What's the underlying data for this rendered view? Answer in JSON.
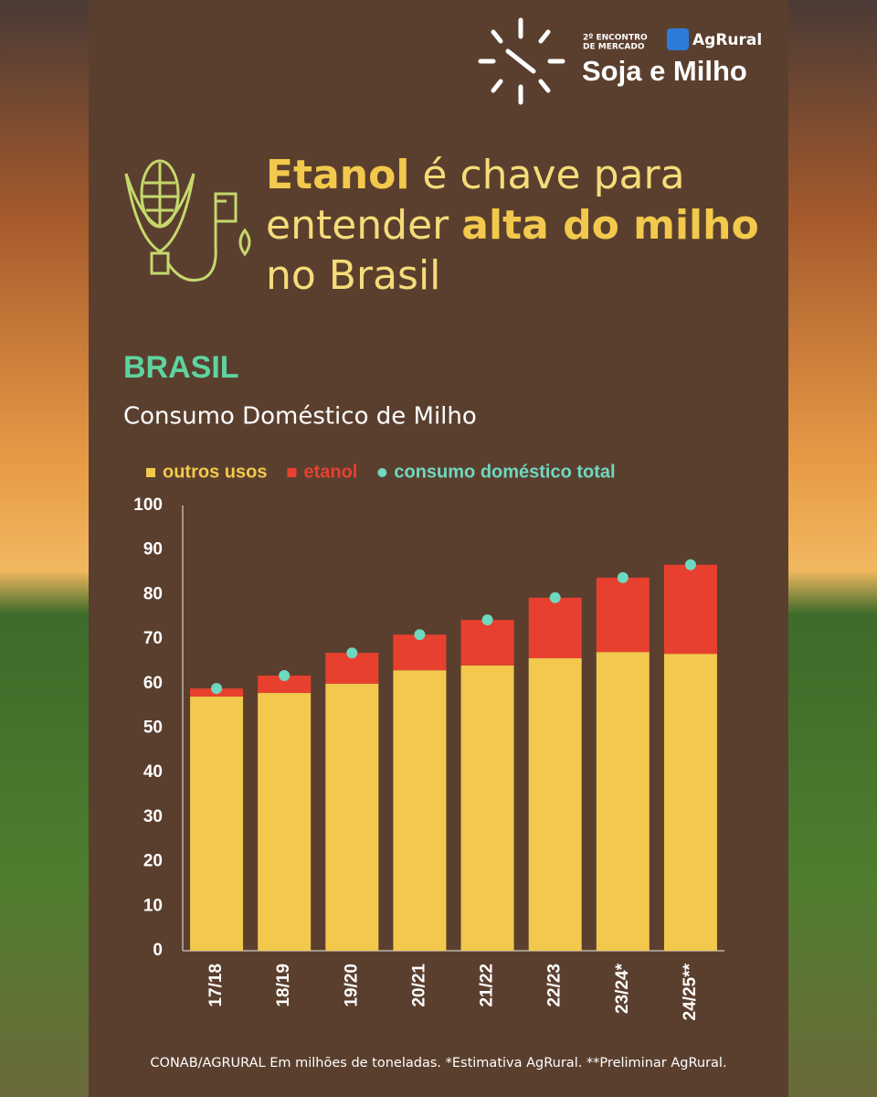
{
  "header": {
    "event_line1": "2º ENCONTRO",
    "event_line2": "DE MERCADO",
    "brand": "AgRural",
    "event_name": "Soja e Milho"
  },
  "headline": [
    [
      "Etanol",
      "é chave para"
    ],
    [
      "entender",
      "alta do milho"
    ],
    [
      "no Brasil"
    ]
  ],
  "chart_data": {
    "type": "bar",
    "stacked": true,
    "title": "BRASIL",
    "subtitle": "Consumo Doméstico de Milho",
    "categories": [
      "17/18",
      "18/19",
      "19/20",
      "20/21",
      "21/22",
      "22/23",
      "23/24*",
      "24/25**"
    ],
    "series": [
      {
        "name": "outros usos",
        "color": "#f2c94c",
        "type": "bar",
        "values": [
          57.1,
          57.9,
          60.0,
          63.0,
          64.1,
          65.7,
          67.1,
          66.7
        ]
      },
      {
        "name": "etanol",
        "color": "#e8402f",
        "type": "bar",
        "values": [
          1.8,
          3.9,
          6.9,
          8.0,
          10.2,
          13.6,
          16.7,
          20.0
        ]
      },
      {
        "name": "consumo doméstico total",
        "color": "#6fd8c0",
        "type": "scatter",
        "values": [
          58.9,
          61.8,
          66.9,
          71.0,
          74.3,
          79.3,
          83.8,
          86.7
        ]
      }
    ],
    "ylim": [
      0,
      100
    ],
    "yticks": [
      0,
      10,
      20,
      30,
      40,
      50,
      60,
      70,
      80,
      90,
      100
    ],
    "grid": false,
    "legend": "top"
  },
  "footnote": "CONAB/AGRURAL  Em milhões de toneladas. *Estimativa AgRural. **Preliminar AgRural."
}
